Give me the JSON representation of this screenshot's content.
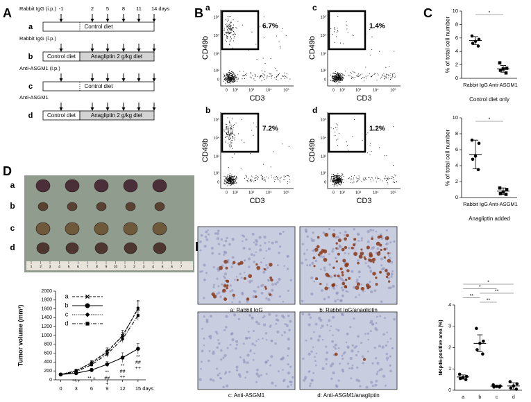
{
  "panel_labels": [
    "A",
    "B",
    "C",
    "D",
    "E"
  ],
  "schedule": {
    "days": [
      "-1",
      "2",
      "5",
      "8",
      "11",
      "14 days"
    ],
    "rows": [
      {
        "label": "a",
        "treatment": "Rabbit IgG (i.p.)",
        "diets": [
          "Control diet"
        ]
      },
      {
        "label": "b",
        "treatment": "Rabbit IgG (i.p.)",
        "diets": [
          "Control diet",
          "Anagliptin 2 g/kg diet"
        ]
      },
      {
        "label": "c",
        "treatment": "Anti-ASGM1 (i.p.)",
        "diets": [
          "Control diet"
        ]
      },
      {
        "label": "d",
        "treatment": "Anti-ASGM1",
        "diets": [
          "Control diet",
          "Anagliptin 2 g/kg diet"
        ]
      }
    ]
  },
  "flow": {
    "x_label": "CD3",
    "y_label": "CD49b",
    "ticks": [
      "0",
      "10²",
      "10³",
      "10⁴",
      "10⁵"
    ],
    "plots": [
      {
        "label": "a",
        "gate": "6.7%"
      },
      {
        "label": "c",
        "gate": "1.4%"
      },
      {
        "label": "b",
        "gate": "7.2%"
      },
      {
        "label": "d",
        "gate": "1.2%"
      }
    ]
  },
  "tumor_photo": {
    "rows": [
      "a",
      "b",
      "c",
      "d"
    ],
    "ruler": [
      "1",
      "2",
      "3",
      "4",
      "5",
      "6",
      "7",
      "8",
      "9",
      "10",
      "1",
      "2",
      "3",
      "4",
      "5",
      "6",
      "7"
    ]
  },
  "micrographs": [
    {
      "caption": "a: Rabbit IgG"
    },
    {
      "caption": "b: Rabbit IgG/anagliptin"
    },
    {
      "caption": "c: Anti-ASGM1"
    },
    {
      "caption": "d: Anti-ASGM1/anagliptin"
    }
  ],
  "chart_data": [
    {
      "type": "dot",
      "ylabel": "% of total cell number",
      "xlabel": "Control diet only",
      "categories": [
        "Rabbit IgG",
        "Anti-ASGM1"
      ],
      "markers": [
        "circle",
        "square"
      ],
      "points": [
        [
          6.3,
          5.8,
          5.5,
          5.2,
          4.8
        ],
        [
          2.3,
          1.5,
          1.4,
          1.2,
          0.8
        ]
      ],
      "means": [
        5.6,
        1.4
      ],
      "sds": [
        0.6,
        0.5
      ],
      "ylim": [
        0,
        10
      ],
      "yticks": [
        0,
        2,
        4,
        6,
        8,
        10
      ],
      "significance": [
        "*"
      ]
    },
    {
      "type": "dot",
      "ylabel": "% of total cell number",
      "xlabel": "Anagliptin added",
      "categories": [
        "Rabbit IgG",
        "Anti-ASGM1"
      ],
      "markers": [
        "circle",
        "square"
      ],
      "points": [
        [
          7.2,
          6.8,
          5.2,
          4.8,
          3.5
        ],
        [
          1.2,
          1.0,
          0.7,
          0.5,
          0.4
        ]
      ],
      "means": [
        5.4,
        0.8
      ],
      "sds": [
        1.8,
        0.4
      ],
      "ylim": [
        0,
        10
      ],
      "yticks": [
        0,
        2,
        4,
        6,
        8,
        10
      ],
      "significance": [
        "*"
      ]
    },
    {
      "type": "line",
      "ylabel": "Tumor volume (mm³)",
      "x": [
        0,
        3,
        6,
        9,
        12,
        15
      ],
      "xlim": [
        -1,
        16.5
      ],
      "xticks": [
        0,
        3,
        6,
        9,
        12,
        {
          "value": 15,
          "label": "15 days"
        }
      ],
      "ylim": [
        0,
        2000
      ],
      "yticks": [
        0,
        200,
        400,
        600,
        800,
        1000,
        1200,
        1400,
        1600,
        1800,
        2000
      ],
      "legend": "upper-left",
      "series": [
        {
          "name": "a",
          "color": "#000000",
          "dash": "dashed",
          "marker": "x",
          "values": [
            120,
            200,
            380,
            620,
            1000,
            1600
          ],
          "errors": [
            15,
            30,
            50,
            80,
            120,
            190
          ]
        },
        {
          "name": "b",
          "color": "#000000",
          "dash": "solid",
          "marker": "circle",
          "values": [
            120,
            150,
            220,
            350,
            500,
            700
          ],
          "errors": [
            15,
            20,
            40,
            60,
            110,
            120
          ]
        },
        {
          "name": "c",
          "color": "#000000",
          "dash": "dotted",
          "marker": "diamond",
          "values": [
            120,
            210,
            390,
            650,
            980,
            1620
          ],
          "errors": [
            15,
            30,
            45,
            70,
            90,
            140
          ]
        },
        {
          "name": "d",
          "color": "#000000",
          "dash": "dashdot",
          "marker": "square",
          "values": [
            120,
            180,
            340,
            580,
            920,
            1450
          ],
          "errors": [
            15,
            25,
            40,
            70,
            80,
            110
          ]
        }
      ],
      "annotations": [
        {
          "x": 3,
          "lines": [
            "** +"
          ]
        },
        {
          "x": 6,
          "lines": [
            "** +"
          ]
        },
        {
          "x": 9,
          "lines": [
            "**",
            "##",
            "+"
          ]
        },
        {
          "x": 12,
          "lines": [
            "**",
            "##",
            "++"
          ]
        },
        {
          "x": 15,
          "lines": [
            "**",
            "##",
            "++"
          ]
        }
      ]
    },
    {
      "type": "dot",
      "ylabel": "NKp46-positive area (%)",
      "categories": [
        "a",
        "b",
        "c",
        "d"
      ],
      "markers": [
        "circle",
        "circle",
        "circle",
        "circle"
      ],
      "points": [
        [
          0.75,
          0.65,
          0.6,
          0.55,
          0.5
        ],
        [
          2.9,
          2.3,
          2.2,
          1.9,
          1.7
        ],
        [
          0.25,
          0.2,
          0.18,
          0.15,
          0.15
        ],
        [
          0.4,
          0.3,
          0.2,
          0.1,
          0.05
        ]
      ],
      "means": [
        0.62,
        2.2,
        0.19,
        0.2
      ],
      "sds": [
        0.1,
        0.4,
        0.04,
        0.15
      ],
      "ylim": [
        0,
        4
      ],
      "yticks": [
        0,
        1,
        2,
        3,
        4
      ],
      "significance": [
        "*",
        "*",
        "**",
        "**",
        "**"
      ]
    }
  ]
}
